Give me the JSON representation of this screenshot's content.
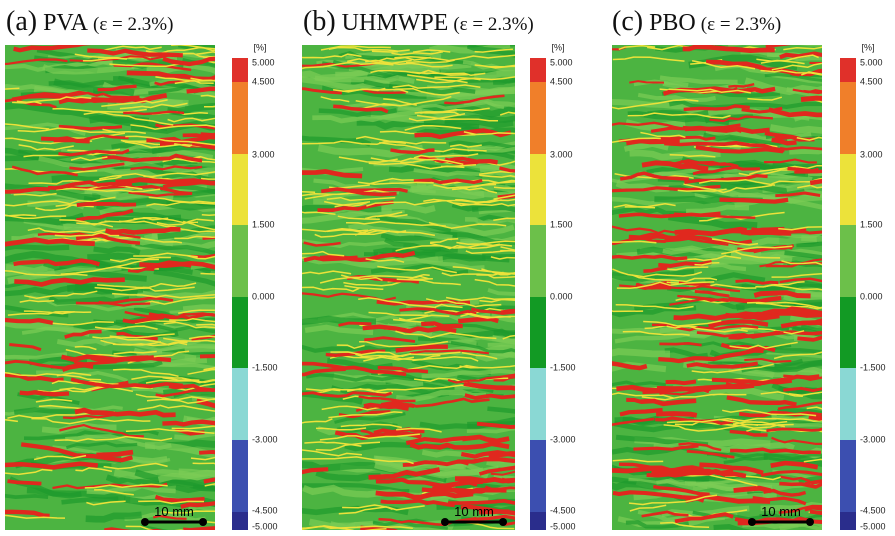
{
  "panels": [
    {
      "label": "(a)",
      "name": "PVA",
      "strain": "(ε = 2.3%)",
      "unit": "[%]",
      "ticks": [
        "5.000",
        "4.500",
        "3.000",
        "1.500",
        "0.000",
        "-1.500",
        "-3.000",
        "-4.500",
        "-5.000"
      ],
      "scale_bar": "10 mm"
    },
    {
      "label": "(b)",
      "name": "UHMWPE",
      "strain": "(ε = 2.3%)",
      "unit": "[%]",
      "ticks": [
        "5.000",
        "4.500",
        "3.000",
        "1.500",
        "0.000",
        "-1.500",
        "-3.000",
        "-4.500",
        "-5.000"
      ],
      "scale_bar": "10 mm"
    },
    {
      "label": "(c)",
      "name": "PBO",
      "strain": "(ε = 2.3%)",
      "unit": "[%]",
      "ticks": [
        "5.000",
        "4.500",
        "3.000",
        "1.500",
        "0.000",
        "-1.500",
        "-3.000",
        "-4.500",
        "-5.000"
      ],
      "scale_bar": "10 mm"
    }
  ]
}
